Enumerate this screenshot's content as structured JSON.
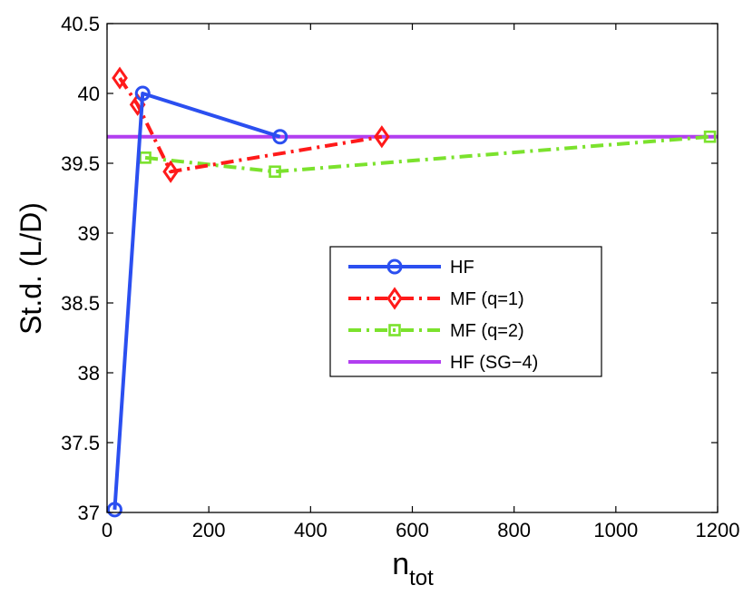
{
  "chart_data": {
    "type": "line",
    "xlabel_main": "n",
    "xlabel_sub": "tot",
    "ylabel": "St.d. (L/D)",
    "xlim": [
      0,
      1200
    ],
    "ylim": [
      37,
      40.5
    ],
    "xticks": [
      0,
      200,
      400,
      600,
      800,
      1000,
      1200
    ],
    "yticks": [
      37,
      37.5,
      38,
      38.5,
      39,
      39.5,
      40,
      40.5
    ],
    "xtick_labels": [
      "0",
      "200",
      "400",
      "600",
      "800",
      "1000",
      "1200"
    ],
    "ytick_labels": [
      "37",
      "37.5",
      "38",
      "38.5",
      "39",
      "39.5",
      "40",
      "40.5"
    ],
    "grid": false,
    "legend_position": "center-right",
    "series": [
      {
        "name": "HF",
        "color": "#2b4ff0",
        "marker": "circle",
        "linestyle": "solid",
        "x": [
          15,
          70,
          340
        ],
        "y": [
          37.02,
          40.0,
          39.69
        ]
      },
      {
        "name": "MF (q=1)",
        "color": "#ff1a1a",
        "marker": "diamond",
        "linestyle": "dashdot",
        "x": [
          25,
          60,
          125,
          540
        ],
        "y": [
          40.11,
          39.92,
          39.44,
          39.69
        ]
      },
      {
        "name": "MF (q=2)",
        "color": "#7be22d",
        "marker": "square",
        "linestyle": "dashdot",
        "x": [
          75,
          330,
          1185
        ],
        "y": [
          39.54,
          39.44,
          39.69
        ]
      },
      {
        "name": "HF (SG−4)",
        "color": "#b23ef0",
        "marker": "none",
        "linestyle": "solid",
        "x": [
          0,
          1200
        ],
        "y": [
          39.69,
          39.69
        ]
      }
    ]
  }
}
